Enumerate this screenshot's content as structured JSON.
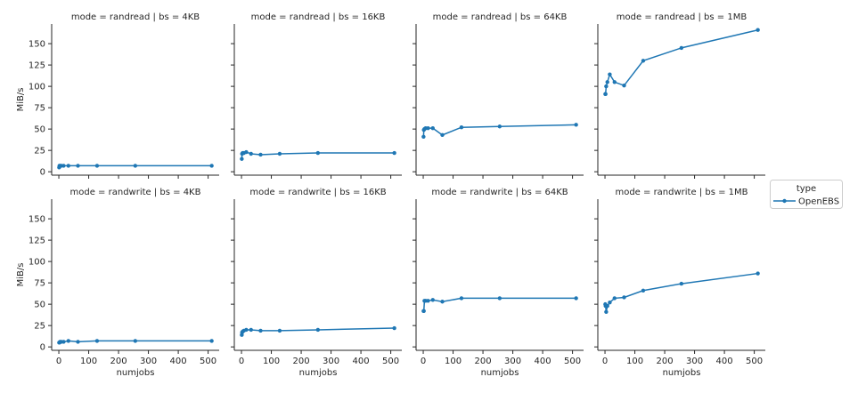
{
  "chart_data": [
    {
      "type": "line",
      "title": "mode = randread | bs = 4KB",
      "ylabel": "MiB/s",
      "xlabel": "",
      "x": [
        1,
        2,
        4,
        8,
        16,
        32,
        64,
        128,
        256,
        512
      ],
      "series": [
        {
          "name": "OpenEBS",
          "values": [
            5,
            7,
            7,
            7,
            7,
            7,
            7,
            7,
            7,
            7
          ]
        }
      ]
    },
    {
      "type": "line",
      "title": "mode = randread | bs = 16KB",
      "ylabel": "",
      "xlabel": "",
      "x": [
        1,
        2,
        4,
        8,
        16,
        32,
        64,
        128,
        256,
        512
      ],
      "series": [
        {
          "name": "OpenEBS",
          "values": [
            15,
            21,
            22,
            22,
            23,
            21,
            20,
            21,
            22,
            22
          ]
        }
      ]
    },
    {
      "type": "line",
      "title": "mode = randread | bs = 64KB",
      "ylabel": "",
      "xlabel": "",
      "x": [
        1,
        2,
        4,
        8,
        16,
        32,
        64,
        128,
        256,
        512
      ],
      "series": [
        {
          "name": "OpenEBS",
          "values": [
            41,
            49,
            50,
            51,
            51,
            51,
            43,
            52,
            53,
            55
          ]
        }
      ]
    },
    {
      "type": "line",
      "title": "mode = randread | bs = 1MB",
      "ylabel": "",
      "xlabel": "",
      "x": [
        1,
        2,
        4,
        8,
        16,
        32,
        64,
        128,
        256,
        512
      ],
      "series": [
        {
          "name": "OpenEBS",
          "values": [
            91,
            91,
            100,
            105,
            114,
            105,
            101,
            130,
            145,
            166
          ]
        }
      ]
    },
    {
      "type": "line",
      "title": "mode = randwrite | bs = 4KB",
      "ylabel": "MiB/s",
      "xlabel": "numjobs",
      "x": [
        1,
        2,
        4,
        8,
        16,
        32,
        64,
        128,
        256,
        512
      ],
      "series": [
        {
          "name": "OpenEBS",
          "values": [
            5,
            5,
            6,
            6,
            6,
            7,
            6,
            7,
            7,
            7
          ]
        }
      ]
    },
    {
      "type": "line",
      "title": "mode = randwrite | bs = 16KB",
      "ylabel": "",
      "xlabel": "numjobs",
      "x": [
        1,
        2,
        4,
        8,
        16,
        32,
        64,
        128,
        256,
        512
      ],
      "series": [
        {
          "name": "OpenEBS",
          "values": [
            14,
            17,
            18,
            19,
            20,
            20,
            19,
            19,
            20,
            22
          ]
        }
      ]
    },
    {
      "type": "line",
      "title": "mode = randwrite | bs = 64KB",
      "ylabel": "",
      "xlabel": "numjobs",
      "x": [
        1,
        2,
        4,
        8,
        16,
        32,
        64,
        128,
        256,
        512
      ],
      "series": [
        {
          "name": "OpenEBS",
          "values": [
            42,
            42,
            54,
            54,
            54,
            55,
            53,
            57,
            57,
            57
          ]
        }
      ]
    },
    {
      "type": "line",
      "title": "mode = randwrite | bs = 1MB",
      "ylabel": "",
      "xlabel": "numjobs",
      "x": [
        1,
        2,
        4,
        8,
        16,
        32,
        64,
        128,
        256,
        512
      ],
      "series": [
        {
          "name": "OpenEBS",
          "values": [
            50,
            48,
            41,
            48,
            52,
            57,
            58,
            66,
            74,
            86
          ]
        }
      ]
    }
  ],
  "axes": {
    "xticks": [
      0,
      100,
      200,
      300,
      400,
      500
    ],
    "yticks": [
      0,
      25,
      50,
      75,
      100,
      125,
      150
    ],
    "ylim": [
      -4,
      173
    ],
    "xlim": [
      -24,
      537
    ],
    "grid": false,
    "sharey": true,
    "sharex": true
  },
  "legend": {
    "title": "type",
    "entries": [
      "OpenEBS"
    ],
    "placement": "right"
  },
  "colors": {
    "series": "#1f77b4"
  }
}
